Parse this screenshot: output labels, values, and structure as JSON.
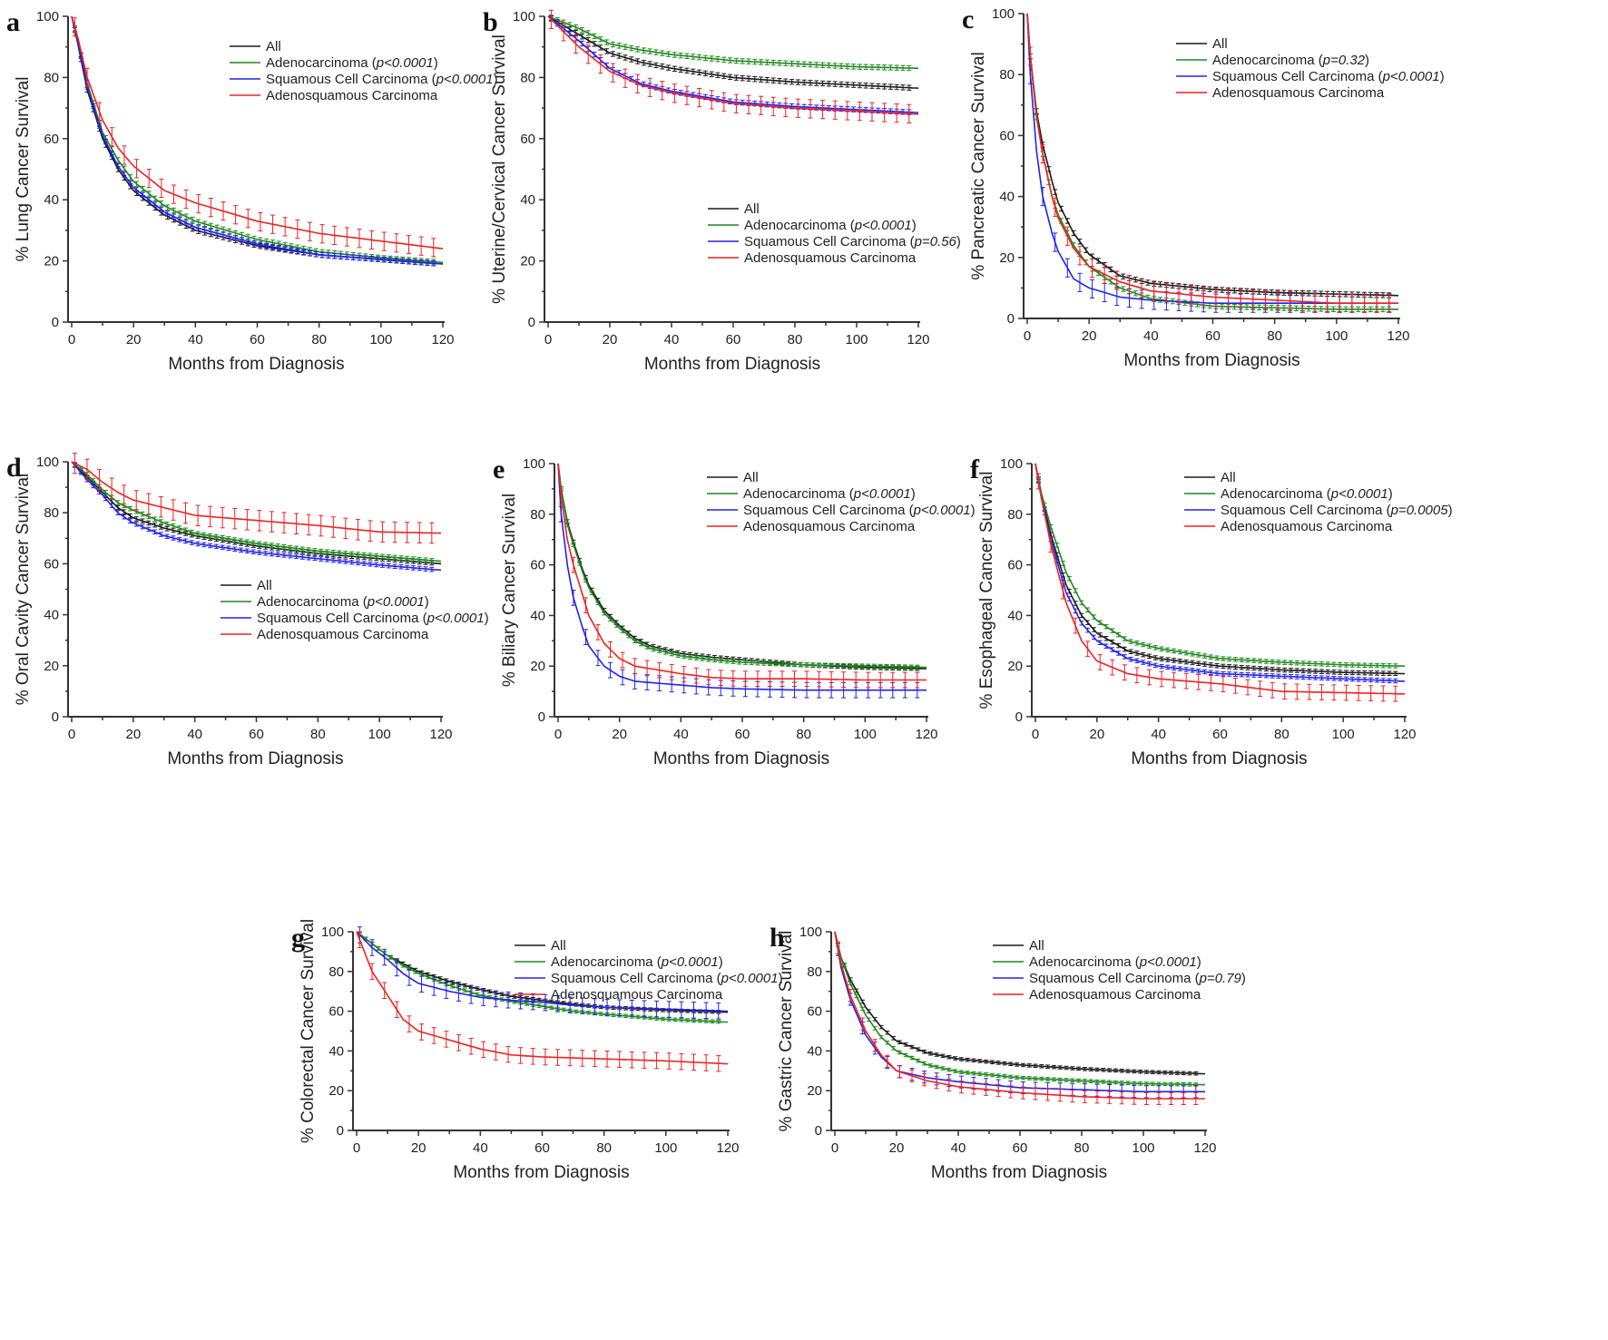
{
  "colors": {
    "all": "#1a1a1a",
    "adeno": "#1f8a1f",
    "squamous": "#2222ee",
    "adenosquamous": "#ee2222"
  },
  "chart_data": [
    {
      "panel": "a",
      "type": "line",
      "title": "",
      "xlabel": "Months from Diagnosis",
      "ylabel": "% Lung Cancer Survival",
      "xlim": [
        0,
        120
      ],
      "ylim": [
        0,
        100
      ],
      "xticks": [
        "0",
        "20",
        "40",
        "60",
        "80",
        "100",
        "120"
      ],
      "yticks": [
        "0",
        "20",
        "40",
        "60",
        "80",
        "100"
      ],
      "legend_position": "top-right",
      "x": [
        0,
        2,
        5,
        10,
        15,
        20,
        30,
        40,
        60,
        80,
        100,
        120
      ],
      "series": [
        {
          "key": "all",
          "name": "All",
          "p": "",
          "values": [
            100,
            91,
            76,
            60,
            50,
            43,
            35,
            30,
            25,
            22,
            20.5,
            19
          ]
        },
        {
          "key": "adeno",
          "name": "Adenocarcinoma",
          "p": "p<0.0001",
          "values": [
            100,
            92,
            78,
            62,
            53,
            46,
            38,
            33,
            27,
            23,
            21,
            19.5
          ]
        },
        {
          "key": "squamous",
          "name": "Squamous Cell Carcinoma",
          "p": "p<0.0001",
          "values": [
            100,
            92,
            77,
            61,
            51,
            44,
            36,
            31,
            25.5,
            22,
            20.5,
            19
          ]
        },
        {
          "key": "adenosquamous",
          "name": "Adenosquamous Carcinoma",
          "p": "",
          "values": [
            100,
            93,
            80,
            66,
            57,
            51,
            43,
            39,
            33,
            29,
            26.5,
            24
          ]
        }
      ]
    },
    {
      "panel": "b",
      "type": "line",
      "title": "",
      "xlabel": "Months from Diagnosis",
      "ylabel": "% Uterine/Cervical Cancer Survival",
      "xlim": [
        0,
        120
      ],
      "ylim": [
        0,
        100
      ],
      "xticks": [
        "0",
        "20",
        "40",
        "60",
        "80",
        "100",
        "120"
      ],
      "yticks": [
        "0",
        "20",
        "40",
        "60",
        "80",
        "100"
      ],
      "legend_position": "center",
      "x": [
        0,
        5,
        10,
        20,
        30,
        40,
        60,
        80,
        100,
        120
      ],
      "series": [
        {
          "key": "all",
          "name": "All",
          "p": "",
          "values": [
            100,
            97,
            94,
            88,
            85,
            83,
            80,
            78.5,
            77.5,
            76.5
          ]
        },
        {
          "key": "adeno",
          "name": "Adenocarcinoma",
          "p": "p<0.0001",
          "values": [
            100,
            98,
            96,
            91,
            89,
            87.5,
            85.5,
            84.5,
            83.5,
            83
          ]
        },
        {
          "key": "squamous",
          "name": "Squamous Cell Carcinoma",
          "p": "p=0.56",
          "values": [
            100,
            96,
            92,
            83,
            78,
            75.5,
            72,
            70.5,
            69.5,
            68.5
          ]
        },
        {
          "key": "adenosquamous",
          "name": "Adenosquamous Carcinoma",
          "p": "",
          "values": [
            100,
            95,
            90,
            82,
            77.5,
            75,
            71.5,
            70,
            69,
            68
          ]
        }
      ]
    },
    {
      "panel": "c",
      "type": "line",
      "title": "",
      "xlabel": "Months from Diagnosis",
      "ylabel": "% Pancreatic Cancer Survival",
      "xlim": [
        0,
        120
      ],
      "ylim": [
        0,
        100
      ],
      "xticks": [
        "0",
        "20",
        "40",
        "60",
        "80",
        "100",
        "120"
      ],
      "yticks": [
        "0",
        "20",
        "40",
        "60",
        "80",
        "100"
      ],
      "legend_position": "top-right",
      "x": [
        0,
        1,
        3,
        5,
        8,
        10,
        15,
        20,
        30,
        40,
        60,
        80,
        100,
        120
      ],
      "series": [
        {
          "key": "all",
          "name": "All",
          "p": "",
          "values": [
            100,
            86,
            68,
            57,
            45,
            38,
            28,
            21,
            14,
            11.5,
            9.5,
            8.5,
            8,
            7.5
          ]
        },
        {
          "key": "adeno",
          "name": "Adenocarcinoma",
          "p": "p=0.32",
          "values": [
            100,
            86,
            66,
            54,
            40,
            34,
            24,
            17,
            10,
            6.5,
            4,
            3.5,
            3,
            3
          ]
        },
        {
          "key": "squamous",
          "name": "Squamous Cell Carcinoma",
          "p": "p<0.0001",
          "values": [
            100,
            80,
            55,
            40,
            28,
            22,
            13,
            10,
            7,
            6,
            5,
            5,
            5,
            5
          ]
        },
        {
          "key": "adenosquamous",
          "name": "Adenosquamous Carcinoma",
          "p": "",
          "values": [
            100,
            86,
            67,
            54,
            40,
            33,
            23,
            17,
            12,
            9,
            7,
            6,
            5,
            5
          ]
        }
      ]
    },
    {
      "panel": "d",
      "type": "line",
      "title": "",
      "xlabel": "Months from Diagnosis",
      "ylabel": "% Oral Cavity Cancer Survival",
      "xlim": [
        0,
        120
      ],
      "ylim": [
        0,
        100
      ],
      "xticks": [
        "0",
        "20",
        "40",
        "60",
        "80",
        "100",
        "120"
      ],
      "yticks": [
        "0",
        "20",
        "40",
        "60",
        "80",
        "100"
      ],
      "legend_position": "center",
      "x": [
        0,
        5,
        10,
        15,
        20,
        30,
        40,
        60,
        80,
        100,
        120
      ],
      "series": [
        {
          "key": "all",
          "name": "All",
          "p": "",
          "values": [
            100,
            94,
            88,
            82,
            78,
            74,
            71,
            67,
            64,
            62,
            60
          ]
        },
        {
          "key": "adeno",
          "name": "Adenocarcinoma",
          "p": "p<0.0001",
          "values": [
            100,
            95,
            89,
            84,
            81,
            76,
            72,
            68,
            65,
            63,
            61
          ]
        },
        {
          "key": "squamous",
          "name": "Squamous Cell Carcinoma",
          "p": "p<0.0001",
          "values": [
            100,
            93,
            87,
            80,
            76,
            71,
            68,
            64.5,
            62,
            59.5,
            57.5
          ]
        },
        {
          "key": "adenosquamous",
          "name": "Adenosquamous Carcinoma",
          "p": "",
          "values": [
            100,
            97,
            92,
            88,
            85,
            82,
            79,
            77,
            75,
            72.5,
            72
          ]
        }
      ]
    },
    {
      "panel": "e",
      "type": "line",
      "title": "",
      "xlabel": "Months from Diagnosis",
      "ylabel": "% Biliary Cancer Survival",
      "xlim": [
        0,
        120
      ],
      "ylim": [
        0,
        100
      ],
      "xticks": [
        "0",
        "20",
        "40",
        "60",
        "80",
        "100",
        "120"
      ],
      "yticks": [
        "0",
        "20",
        "40",
        "60",
        "80",
        "100"
      ],
      "legend_position": "top-right",
      "x": [
        0,
        1,
        3,
        5,
        8,
        10,
        15,
        20,
        25,
        30,
        40,
        50,
        60,
        80,
        100,
        120
      ],
      "series": [
        {
          "key": "all",
          "name": "All",
          "p": "",
          "values": [
            100,
            90,
            77,
            69,
            58,
            52,
            42,
            36,
            31,
            28,
            25,
            23.5,
            22.5,
            20.5,
            19.5,
            19
          ]
        },
        {
          "key": "adeno",
          "name": "Adenocarcinoma",
          "p": "p<0.0001",
          "values": [
            100,
            90,
            76,
            68,
            57,
            51,
            41,
            35,
            30,
            27,
            24,
            22.5,
            21.5,
            20.5,
            20,
            19.5
          ]
        },
        {
          "key": "squamous",
          "name": "Squamous Cell Carcinoma",
          "p": "p<0.0001",
          "values": [
            100,
            80,
            60,
            47,
            35,
            28,
            20,
            16,
            14,
            13.5,
            12.5,
            11.5,
            11,
            10.5,
            10.5,
            10.5
          ]
        },
        {
          "key": "adenosquamous",
          "name": "Adenosquamous Carcinoma",
          "p": "",
          "values": [
            100,
            87,
            70,
            60,
            48,
            40,
            29,
            23,
            20,
            19,
            17,
            15.5,
            15,
            15,
            14.5,
            14.5
          ]
        }
      ]
    },
    {
      "panel": "f",
      "type": "line",
      "title": "",
      "xlabel": "Months from Diagnosis",
      "ylabel": "% Esophageal Cancer Survival",
      "xlim": [
        0,
        120
      ],
      "ylim": [
        0,
        100
      ],
      "xticks": [
        "0",
        "20",
        "40",
        "60",
        "80",
        "100",
        "120"
      ],
      "yticks": [
        "0",
        "20",
        "40",
        "60",
        "80",
        "100"
      ],
      "legend_position": "top-right",
      "x": [
        0,
        2,
        5,
        10,
        15,
        20,
        30,
        40,
        60,
        80,
        100,
        120
      ],
      "series": [
        {
          "key": "all",
          "name": "All",
          "p": "",
          "values": [
            100,
            87,
            72,
            52,
            40,
            33,
            26,
            23,
            20,
            18.5,
            17.5,
            17
          ]
        },
        {
          "key": "adeno",
          "name": "Adenocarcinoma",
          "p": "p<0.0001",
          "values": [
            100,
            88,
            75,
            57,
            45,
            38,
            30,
            27,
            23,
            21.5,
            20.5,
            20
          ]
        },
        {
          "key": "squamous",
          "name": "Squamous Cell Carcinoma",
          "p": "p=0.0005",
          "values": [
            100,
            86,
            70,
            49,
            37,
            30,
            23,
            20,
            17,
            16,
            15,
            14
          ]
        },
        {
          "key": "adenosquamous",
          "name": "Adenosquamous Carcinoma",
          "p": "",
          "values": [
            100,
            86,
            68,
            45,
            30,
            22,
            17,
            15,
            13,
            10,
            9.5,
            9
          ]
        }
      ]
    },
    {
      "panel": "g",
      "type": "line",
      "title": "",
      "xlabel": "Months from Diagnosis",
      "ylabel": "% Colorectal Cancer Survival",
      "xlim": [
        0,
        120
      ],
      "ylim": [
        0,
        100
      ],
      "xticks": [
        "0",
        "20",
        "40",
        "60",
        "80",
        "100",
        "120"
      ],
      "yticks": [
        "0",
        "20",
        "40",
        "60",
        "80",
        "100"
      ],
      "legend_position": "top-right",
      "x": [
        0,
        5,
        10,
        15,
        20,
        30,
        40,
        50,
        60,
        70,
        80,
        100,
        120
      ],
      "series": [
        {
          "key": "all",
          "name": "All",
          "p": "",
          "values": [
            100,
            94,
            88,
            84,
            80,
            75,
            71,
            67.5,
            65.5,
            63.5,
            62,
            60.5,
            59.5
          ]
        },
        {
          "key": "adeno",
          "name": "Adenocarcinoma",
          "p": "p<0.0001",
          "values": [
            100,
            94,
            88,
            83,
            79,
            73,
            68,
            65,
            62.5,
            60,
            58.5,
            56,
            54.5
          ]
        },
        {
          "key": "squamous",
          "name": "Squamous Cell Carcinoma",
          "p": "p<0.0001",
          "values": [
            100,
            92,
            86,
            79,
            74,
            70,
            67,
            65.5,
            64.5,
            63,
            62,
            61,
            60
          ]
        },
        {
          "key": "adenosquamous",
          "name": "Adenosquamous Carcinoma",
          "p": "",
          "values": [
            100,
            80,
            68,
            56,
            50,
            45.5,
            41,
            38,
            37,
            36.5,
            36,
            35,
            33.5
          ]
        }
      ]
    },
    {
      "panel": "h",
      "type": "line",
      "title": "",
      "xlabel": "Months from Diagnosis",
      "ylabel": "% Gastric Cancer Survival",
      "xlim": [
        0,
        120
      ],
      "ylim": [
        0,
        100
      ],
      "xticks": [
        "0",
        "20",
        "40",
        "60",
        "80",
        "100",
        "120"
      ],
      "yticks": [
        "0",
        "20",
        "40",
        "60",
        "80",
        "100"
      ],
      "legend_position": "top-right",
      "x": [
        0,
        2,
        5,
        10,
        15,
        20,
        30,
        40,
        60,
        80,
        100,
        120
      ],
      "series": [
        {
          "key": "all",
          "name": "All",
          "p": "",
          "values": [
            100,
            87,
            76,
            62,
            52,
            45,
            39,
            36,
            33,
            31,
            29.5,
            28.5
          ]
        },
        {
          "key": "adeno",
          "name": "Adenocarcinoma",
          "p": "p<0.0001",
          "values": [
            100,
            87,
            74,
            58,
            47,
            40,
            33,
            29.5,
            26.5,
            25,
            23.5,
            23
          ]
        },
        {
          "key": "squamous",
          "name": "Squamous Cell Carcinoma",
          "p": "p=0.79",
          "values": [
            100,
            82,
            66,
            48,
            37,
            30,
            26.5,
            24.5,
            21.5,
            20.5,
            19.5,
            19.5
          ]
        },
        {
          "key": "adenosquamous",
          "name": "Adenosquamous Carcinoma",
          "p": "",
          "values": [
            100,
            84,
            68,
            50,
            38,
            30,
            25,
            22,
            19,
            17,
            16,
            16
          ]
        }
      ]
    }
  ]
}
